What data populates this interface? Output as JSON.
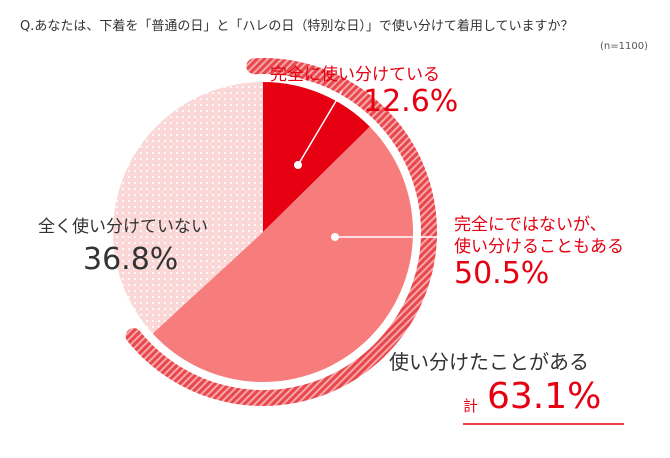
{
  "header": {
    "question": "Q.あなたは、下着を「普通の日」と「ハレの日（特別な日）」で使い分けて着用していますか？",
    "sample_size": "(n=1100)"
  },
  "chart_data": {
    "type": "pie",
    "slices": [
      {
        "label": "完全に使い分けている",
        "value": 12.6,
        "value_label": "12.6%",
        "color": "#e60012"
      },
      {
        "label_lines": [
          "完全にではないが、",
          "使い分けることもある"
        ],
        "value": 50.5,
        "value_label": "50.5%",
        "color": "#f77d7d"
      },
      {
        "label": "全く使い分けていない",
        "value": 36.8,
        "value_label": "36.8%",
        "color": "#fbd7d7"
      }
    ],
    "group_total": {
      "label": "使い分けたことがある",
      "prefix": "計",
      "value": 63.1,
      "value_label": "63.1%"
    }
  }
}
